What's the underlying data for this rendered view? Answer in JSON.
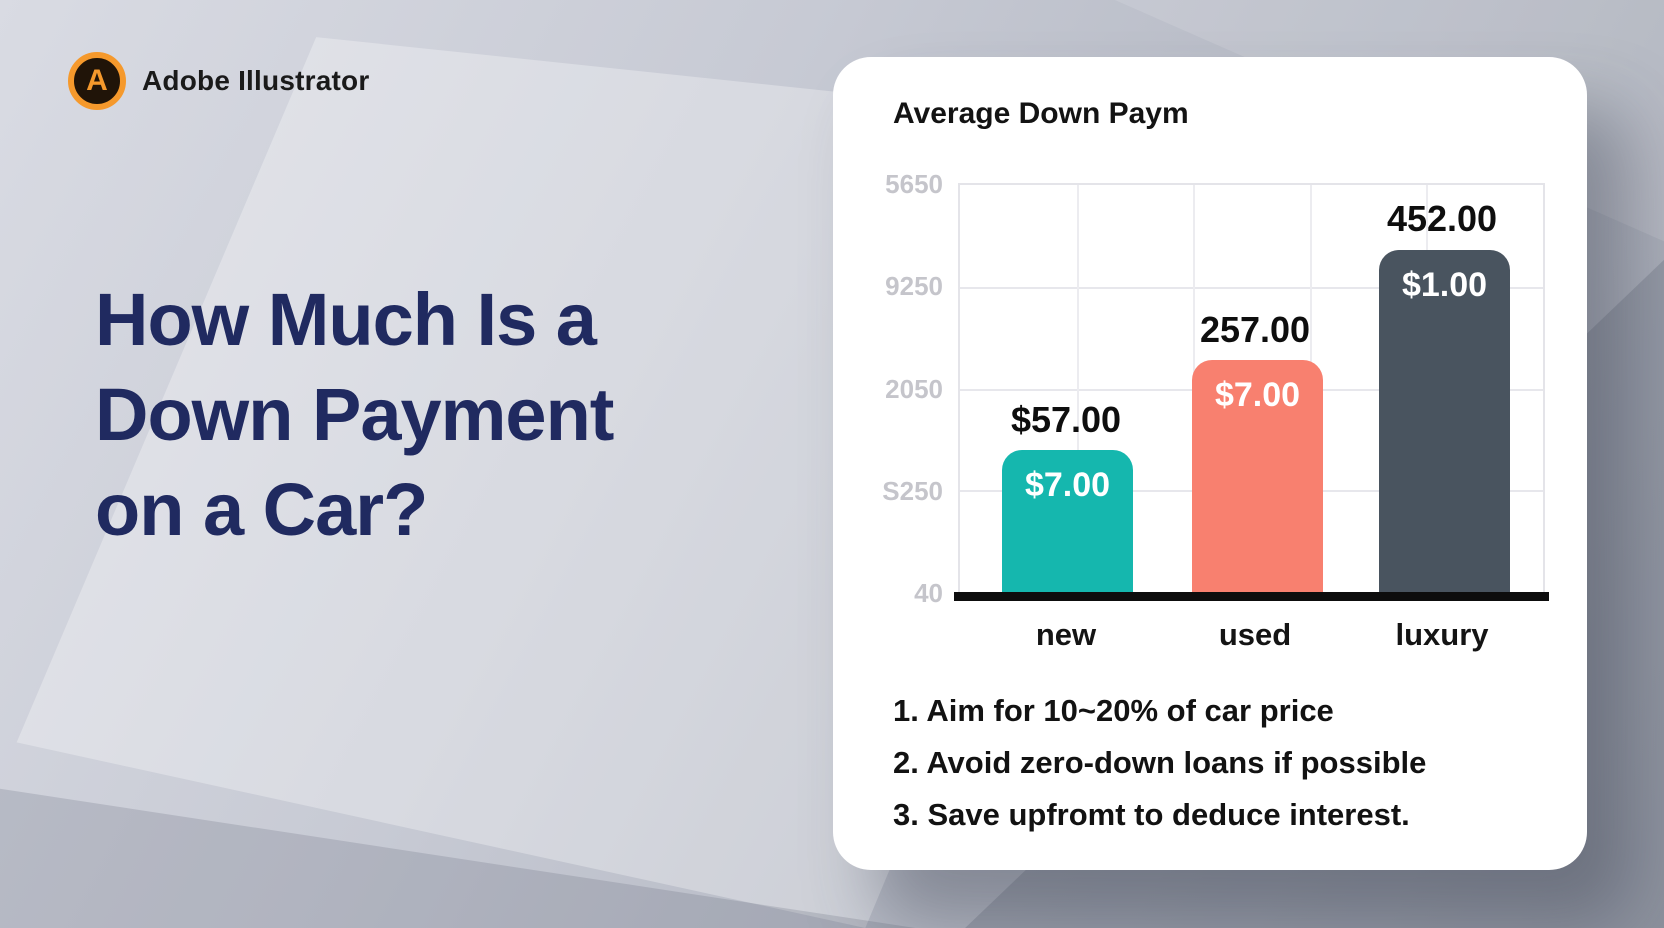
{
  "logo": {
    "app_name": "Adobe Illustrator",
    "icon_letter": "A",
    "icon_ring_color": "#f5992c",
    "icon_bg_color": "#201408"
  },
  "headline": {
    "color": "#202a60",
    "line1": "How Much Is a",
    "line2": "Down Payment",
    "line3": "on a Car?"
  },
  "card": {
    "background": "#ffffff"
  },
  "chart_data": {
    "type": "bar",
    "title": "Average Down Paym",
    "categories": [
      "new",
      "used",
      "luxury"
    ],
    "y_tick_labels": [
      "5650",
      "9250",
      "2050",
      "S250",
      "40"
    ],
    "grid": true,
    "legend": false,
    "axis_color": "#0d0d0d",
    "gridline_color": "#e7e7ec",
    "tick_label_color": "#c5c5cb",
    "bars": [
      {
        "category": "new",
        "top_label": "$57.00",
        "inside_label": "$7.00",
        "color": "#15b7ae",
        "height_fraction": 0.35
      },
      {
        "category": "used",
        "top_label": "257.00",
        "inside_label": "$7.00",
        "color": "#f8806f",
        "height_fraction": 0.57
      },
      {
        "category": "luxury",
        "top_label": "452.00",
        "inside_label": "$1.00",
        "color": "#49545f",
        "height_fraction": 0.84
      }
    ]
  },
  "tips": {
    "item1": "1. Aim for 10~20% of car price",
    "item2": "2. Avoid zero-down loans if possible",
    "item3": "3. Save upfromt to deduce interest."
  }
}
